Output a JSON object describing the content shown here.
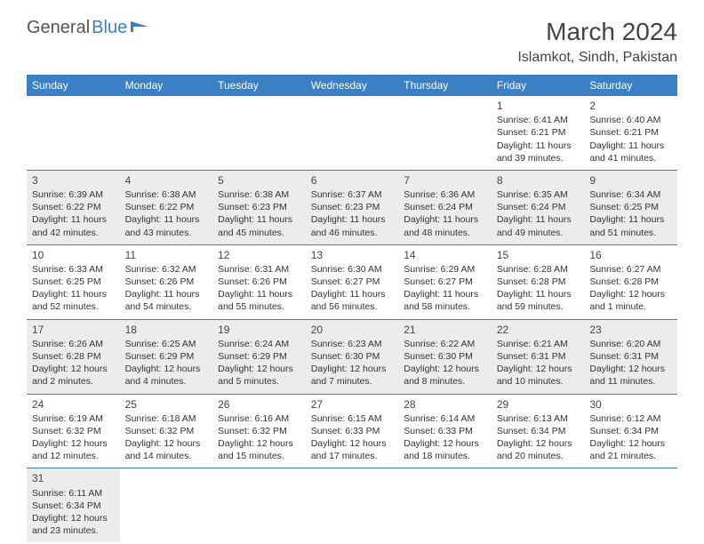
{
  "logo": {
    "dark": "General",
    "blue": "Blue"
  },
  "header": {
    "month": "March 2024",
    "location": "Islamkot, Sindh, Pakistan"
  },
  "colors": {
    "accent": "#3b7fc4",
    "shaded": "#ececec",
    "text": "#333333"
  },
  "days_of_week": [
    "Sunday",
    "Monday",
    "Tuesday",
    "Wednesday",
    "Thursday",
    "Friday",
    "Saturday"
  ],
  "weeks": [
    [
      null,
      null,
      null,
      null,
      null,
      {
        "n": "1",
        "sr": "Sunrise: 6:41 AM",
        "ss": "Sunset: 6:21 PM",
        "dl": "Daylight: 11 hours and 39 minutes."
      },
      {
        "n": "2",
        "sr": "Sunrise: 6:40 AM",
        "ss": "Sunset: 6:21 PM",
        "dl": "Daylight: 11 hours and 41 minutes."
      }
    ],
    [
      {
        "n": "3",
        "sr": "Sunrise: 6:39 AM",
        "ss": "Sunset: 6:22 PM",
        "dl": "Daylight: 11 hours and 42 minutes."
      },
      {
        "n": "4",
        "sr": "Sunrise: 6:38 AM",
        "ss": "Sunset: 6:22 PM",
        "dl": "Daylight: 11 hours and 43 minutes."
      },
      {
        "n": "5",
        "sr": "Sunrise: 6:38 AM",
        "ss": "Sunset: 6:23 PM",
        "dl": "Daylight: 11 hours and 45 minutes."
      },
      {
        "n": "6",
        "sr": "Sunrise: 6:37 AM",
        "ss": "Sunset: 6:23 PM",
        "dl": "Daylight: 11 hours and 46 minutes."
      },
      {
        "n": "7",
        "sr": "Sunrise: 6:36 AM",
        "ss": "Sunset: 6:24 PM",
        "dl": "Daylight: 11 hours and 48 minutes."
      },
      {
        "n": "8",
        "sr": "Sunrise: 6:35 AM",
        "ss": "Sunset: 6:24 PM",
        "dl": "Daylight: 11 hours and 49 minutes."
      },
      {
        "n": "9",
        "sr": "Sunrise: 6:34 AM",
        "ss": "Sunset: 6:25 PM",
        "dl": "Daylight: 11 hours and 51 minutes."
      }
    ],
    [
      {
        "n": "10",
        "sr": "Sunrise: 6:33 AM",
        "ss": "Sunset: 6:25 PM",
        "dl": "Daylight: 11 hours and 52 minutes."
      },
      {
        "n": "11",
        "sr": "Sunrise: 6:32 AM",
        "ss": "Sunset: 6:26 PM",
        "dl": "Daylight: 11 hours and 54 minutes."
      },
      {
        "n": "12",
        "sr": "Sunrise: 6:31 AM",
        "ss": "Sunset: 6:26 PM",
        "dl": "Daylight: 11 hours and 55 minutes."
      },
      {
        "n": "13",
        "sr": "Sunrise: 6:30 AM",
        "ss": "Sunset: 6:27 PM",
        "dl": "Daylight: 11 hours and 56 minutes."
      },
      {
        "n": "14",
        "sr": "Sunrise: 6:29 AM",
        "ss": "Sunset: 6:27 PM",
        "dl": "Daylight: 11 hours and 58 minutes."
      },
      {
        "n": "15",
        "sr": "Sunrise: 6:28 AM",
        "ss": "Sunset: 6:28 PM",
        "dl": "Daylight: 11 hours and 59 minutes."
      },
      {
        "n": "16",
        "sr": "Sunrise: 6:27 AM",
        "ss": "Sunset: 6:28 PM",
        "dl": "Daylight: 12 hours and 1 minute."
      }
    ],
    [
      {
        "n": "17",
        "sr": "Sunrise: 6:26 AM",
        "ss": "Sunset: 6:28 PM",
        "dl": "Daylight: 12 hours and 2 minutes."
      },
      {
        "n": "18",
        "sr": "Sunrise: 6:25 AM",
        "ss": "Sunset: 6:29 PM",
        "dl": "Daylight: 12 hours and 4 minutes."
      },
      {
        "n": "19",
        "sr": "Sunrise: 6:24 AM",
        "ss": "Sunset: 6:29 PM",
        "dl": "Daylight: 12 hours and 5 minutes."
      },
      {
        "n": "20",
        "sr": "Sunrise: 6:23 AM",
        "ss": "Sunset: 6:30 PM",
        "dl": "Daylight: 12 hours and 7 minutes."
      },
      {
        "n": "21",
        "sr": "Sunrise: 6:22 AM",
        "ss": "Sunset: 6:30 PM",
        "dl": "Daylight: 12 hours and 8 minutes."
      },
      {
        "n": "22",
        "sr": "Sunrise: 6:21 AM",
        "ss": "Sunset: 6:31 PM",
        "dl": "Daylight: 12 hours and 10 minutes."
      },
      {
        "n": "23",
        "sr": "Sunrise: 6:20 AM",
        "ss": "Sunset: 6:31 PM",
        "dl": "Daylight: 12 hours and 11 minutes."
      }
    ],
    [
      {
        "n": "24",
        "sr": "Sunrise: 6:19 AM",
        "ss": "Sunset: 6:32 PM",
        "dl": "Daylight: 12 hours and 12 minutes."
      },
      {
        "n": "25",
        "sr": "Sunrise: 6:18 AM",
        "ss": "Sunset: 6:32 PM",
        "dl": "Daylight: 12 hours and 14 minutes."
      },
      {
        "n": "26",
        "sr": "Sunrise: 6:16 AM",
        "ss": "Sunset: 6:32 PM",
        "dl": "Daylight: 12 hours and 15 minutes."
      },
      {
        "n": "27",
        "sr": "Sunrise: 6:15 AM",
        "ss": "Sunset: 6:33 PM",
        "dl": "Daylight: 12 hours and 17 minutes."
      },
      {
        "n": "28",
        "sr": "Sunrise: 6:14 AM",
        "ss": "Sunset: 6:33 PM",
        "dl": "Daylight: 12 hours and 18 minutes."
      },
      {
        "n": "29",
        "sr": "Sunrise: 6:13 AM",
        "ss": "Sunset: 6:34 PM",
        "dl": "Daylight: 12 hours and 20 minutes."
      },
      {
        "n": "30",
        "sr": "Sunrise: 6:12 AM",
        "ss": "Sunset: 6:34 PM",
        "dl": "Daylight: 12 hours and 21 minutes."
      }
    ],
    [
      {
        "n": "31",
        "sr": "Sunrise: 6:11 AM",
        "ss": "Sunset: 6:34 PM",
        "dl": "Daylight: 12 hours and 23 minutes."
      },
      null,
      null,
      null,
      null,
      null,
      null
    ]
  ]
}
